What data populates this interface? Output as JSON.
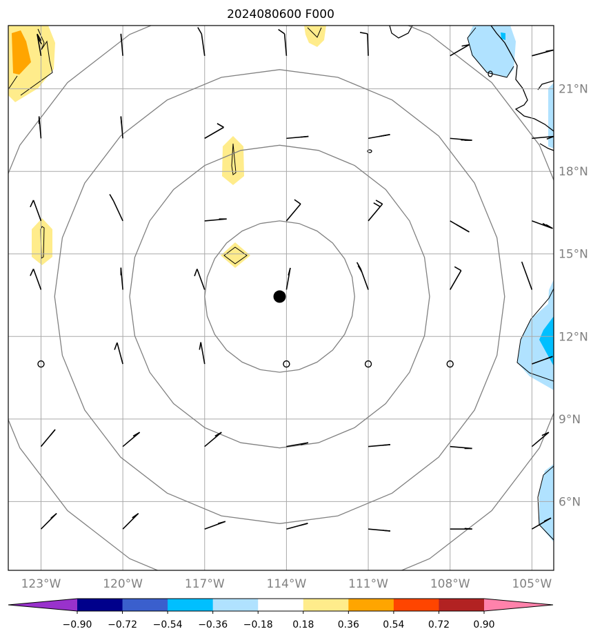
{
  "figure": {
    "title": "2024080600 F000"
  },
  "map": {
    "extent": {
      "lon_min": -124.2,
      "lon_max": -104.2,
      "lat_min": 3.5,
      "lat_max": 23.3
    },
    "gridlines": true,
    "lat_ticks": [
      {
        "value": 6,
        "label": "6°N"
      },
      {
        "value": 9,
        "label": "9°N"
      },
      {
        "value": 12,
        "label": "12°N"
      },
      {
        "value": 15,
        "label": "15°N"
      },
      {
        "value": 18,
        "label": "18°N"
      },
      {
        "value": 21,
        "label": "21°N"
      }
    ],
    "lon_ticks": [
      {
        "value": -123,
        "label": "123°W"
      },
      {
        "value": -120,
        "label": "120°W"
      },
      {
        "value": -117,
        "label": "117°W"
      },
      {
        "value": -114,
        "label": "114°W"
      },
      {
        "value": -111,
        "label": "111°W"
      },
      {
        "value": -108,
        "label": "108°W"
      },
      {
        "value": -105,
        "label": "105°W"
      }
    ],
    "storm_center": {
      "lon": -114.25,
      "lat": 13.45
    },
    "range_rings_deg": [
      2.75,
      5.5,
      8.25,
      11.0
    ]
  },
  "colorbar": {
    "boundaries": [
      "−0.90",
      "−0.72",
      "−0.54",
      "−0.36",
      "−0.18",
      "0.18",
      "0.36",
      "0.54",
      "0.72",
      "0.90"
    ],
    "colors": [
      "#9932cc",
      "#00008b",
      "#3a5fcd",
      "#00bfff",
      "#b0e2ff",
      "#ffffff",
      "#ffec8b",
      "#ffa500",
      "#ff4500",
      "#b22222",
      "#ff82ab"
    ],
    "extend": "both"
  },
  "colors": {
    "contour": "#808080",
    "grid": "#a9a9a9",
    "barb": "#000000",
    "coast": "#000000"
  },
  "wind_barbs": {
    "lons": [
      -123,
      -120,
      -117,
      -114,
      -111,
      -108,
      -105
    ],
    "lats": [
      22.2,
      19.2,
      16.2,
      13.7,
      11.0,
      8.0,
      5.0
    ],
    "rows": [
      [
        [
          -10,
          150,
          2
        ],
        [
          -5,
          175,
          1
        ],
        [
          -8,
          330,
          1
        ],
        [
          -5,
          305,
          1
        ],
        [
          -2,
          280,
          1
        ],
        [
          60,
          260,
          1
        ],
        [
          75,
          260,
          1
        ]
      ],
      [
        [
          -5,
          180,
          1
        ],
        [
          -5,
          175,
          1
        ],
        [
          60,
          300,
          1
        ],
        [
          85,
          265,
          1
        ],
        [
          80,
          260,
          2
        ],
        [
          95,
          270,
          2
        ],
        [
          85,
          250,
          1
        ]
      ],
      [
        [
          -20,
          205,
          1
        ],
        [
          -25,
          330,
          1
        ],
        [
          85,
          270,
          1
        ],
        [
          40,
          305,
          1
        ],
        [
          40,
          300,
          2
        ],
        [
          120,
          300,
          3
        ],
        [
          110,
          300,
          2
        ]
      ],
      [
        [
          -20,
          205,
          1
        ],
        [
          -5,
          180,
          1
        ],
        [
          -20,
          200,
          1
        ],
        [
          10,
          195,
          1
        ],
        [
          -20,
          330,
          2
        ],
        [
          30,
          300,
          1
        ],
        [
          -20,
          340,
          1
        ]
      ],
      [
        [
          null,
          0,
          0
        ],
        [
          -15,
          200,
          1
        ],
        [
          -10,
          190,
          1
        ],
        [
          null,
          0,
          0
        ],
        [
          null,
          0,
          0
        ],
        [
          null,
          0,
          0
        ],
        [
          70,
          250,
          1
        ]
      ],
      [
        [
          40,
          220,
          1
        ],
        [
          50,
          240,
          1
        ],
        [
          50,
          240,
          1
        ],
        [
          80,
          255,
          1
        ],
        [
          85,
          265,
          1
        ],
        [
          95,
          270,
          1
        ],
        [
          50,
          245,
          1
        ]
      ],
      [
        [
          45,
          230,
          1
        ],
        [
          45,
          235,
          1
        ],
        [
          70,
          255,
          1
        ],
        [
          75,
          255,
          1
        ],
        [
          95,
          275,
          1
        ],
        [
          90,
          275,
          1
        ],
        [
          60,
          245,
          1
        ]
      ]
    ]
  }
}
